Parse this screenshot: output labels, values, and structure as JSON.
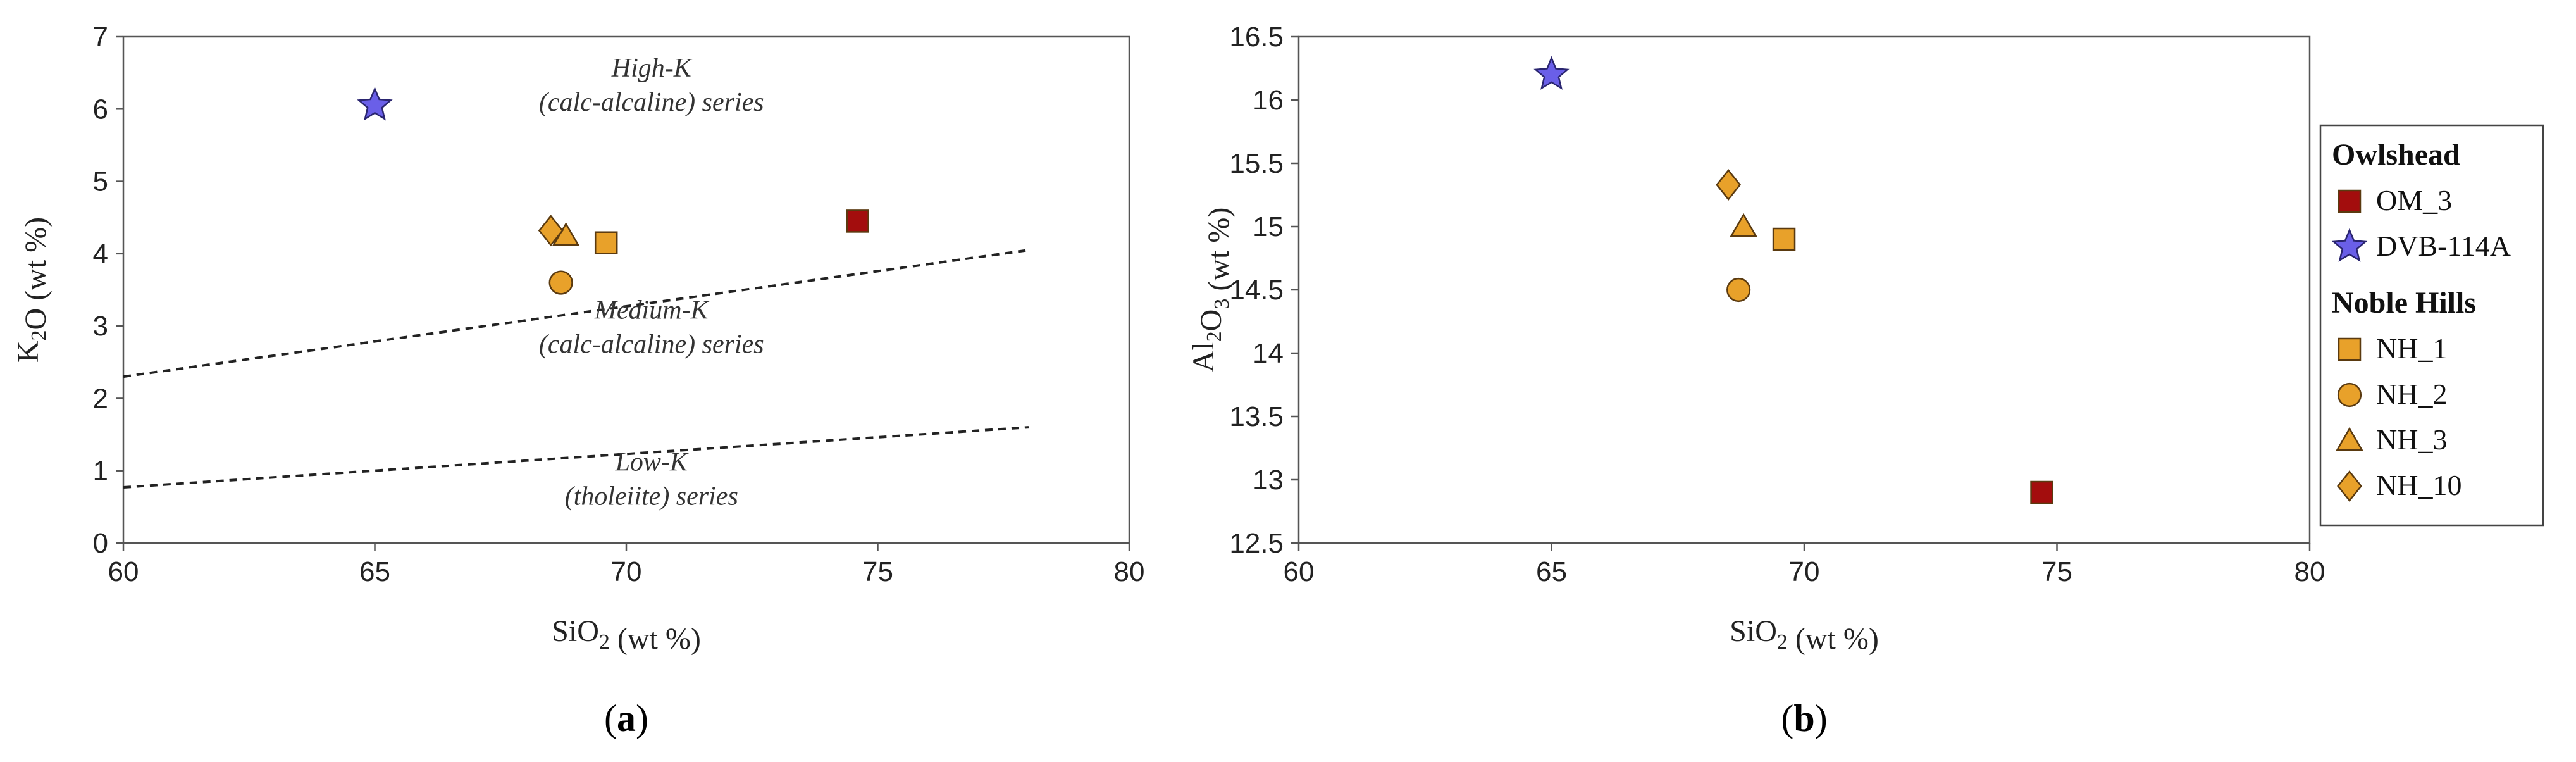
{
  "chart_data": [
    {
      "type": "scatter",
      "panel_label": "(a)",
      "xlabel": "SiO₂ (wt %)",
      "ylabel": "K₂O (wt %)",
      "xlim": [
        60,
        80
      ],
      "ylim": [
        0,
        7
      ],
      "xticks": [
        "60",
        "65",
        "70",
        "75",
        "80"
      ],
      "yticks": [
        "0",
        "1",
        "2",
        "3",
        "4",
        "5",
        "6",
        "7"
      ],
      "grid": false,
      "series": [
        {
          "name": "OM_3",
          "marker": "square",
          "color": "#a30d0d",
          "points": [
            [
              74.6,
              4.45
            ]
          ]
        },
        {
          "name": "DVB-114A",
          "marker": "star",
          "color": "#6a5fe8",
          "points": [
            [
              65.0,
              6.05
            ]
          ]
        },
        {
          "name": "NH_1",
          "marker": "square",
          "color": "#e8a12a",
          "points": [
            [
              69.6,
              4.15
            ]
          ]
        },
        {
          "name": "NH_2",
          "marker": "circle",
          "color": "#e8a12a",
          "points": [
            [
              68.7,
              3.6
            ]
          ]
        },
        {
          "name": "NH_3",
          "marker": "triangle",
          "color": "#e8a12a",
          "points": [
            [
              68.8,
              4.25
            ]
          ]
        },
        {
          "name": "NH_10",
          "marker": "diamond",
          "color": "#e8a12a",
          "points": [
            [
              68.5,
              4.32
            ]
          ]
        }
      ],
      "boundary_lines": [
        {
          "style": "dashed",
          "points": [
            [
              60,
              2.3
            ],
            [
              78,
              4.05
            ]
          ]
        },
        {
          "style": "dashed",
          "points": [
            [
              60,
              0.77
            ],
            [
              78,
              1.6
            ]
          ]
        }
      ],
      "annotations": [
        {
          "lines": [
            "High-K",
            "(calc-alcaline) series"
          ],
          "x": 70.5,
          "y": 6.45
        },
        {
          "lines": [
            "Medium-K",
            "(calc-alcaline) series"
          ],
          "x": 70.5,
          "y": 3.1
        },
        {
          "lines": [
            "Low-K",
            "(tholeiite) series"
          ],
          "x": 70.5,
          "y": 1.0
        }
      ]
    },
    {
      "type": "scatter",
      "panel_label": "(b)",
      "xlabel": "SiO₂ (wt %)",
      "ylabel": "Al₂O₃ (wt %)",
      "xlim": [
        60,
        80
      ],
      "ylim": [
        12.5,
        16.5
      ],
      "xticks": [
        "60",
        "65",
        "70",
        "75",
        "80"
      ],
      "yticks": [
        "12.5",
        "13",
        "13.5",
        "14",
        "14.5",
        "15",
        "15.5",
        "16",
        "16.5"
      ],
      "grid": false,
      "series": [
        {
          "name": "OM_3",
          "marker": "square",
          "color": "#a30d0d",
          "points": [
            [
              74.7,
              12.9
            ]
          ]
        },
        {
          "name": "DVB-114A",
          "marker": "star",
          "color": "#6a5fe8",
          "points": [
            [
              65.0,
              16.2
            ]
          ]
        },
        {
          "name": "NH_1",
          "marker": "square",
          "color": "#e8a12a",
          "points": [
            [
              69.6,
              14.9
            ]
          ]
        },
        {
          "name": "NH_2",
          "marker": "circle",
          "color": "#e8a12a",
          "points": [
            [
              68.7,
              14.5
            ]
          ]
        },
        {
          "name": "NH_3",
          "marker": "triangle",
          "color": "#e8a12a",
          "points": [
            [
              68.8,
              15.0
            ]
          ]
        },
        {
          "name": "NH_10",
          "marker": "diamond",
          "color": "#e8a12a",
          "points": [
            [
              68.5,
              15.33
            ]
          ]
        }
      ]
    }
  ],
  "legend": {
    "placement": "right",
    "groups": [
      {
        "title": "Owlshead",
        "items": [
          {
            "label": "OM_3",
            "marker": "square",
            "color": "#a30d0d"
          },
          {
            "label": "DVB-114A",
            "marker": "star",
            "color": "#6a5fe8"
          }
        ]
      },
      {
        "title": "Noble Hills",
        "items": [
          {
            "label": "NH_1",
            "marker": "square",
            "color": "#e8a12a"
          },
          {
            "label": "NH_2",
            "marker": "circle",
            "color": "#e8a12a"
          },
          {
            "label": "NH_3",
            "marker": "triangle",
            "color": "#e8a12a"
          },
          {
            "label": "NH_10",
            "marker": "diamond",
            "color": "#e8a12a"
          }
        ]
      }
    ]
  }
}
